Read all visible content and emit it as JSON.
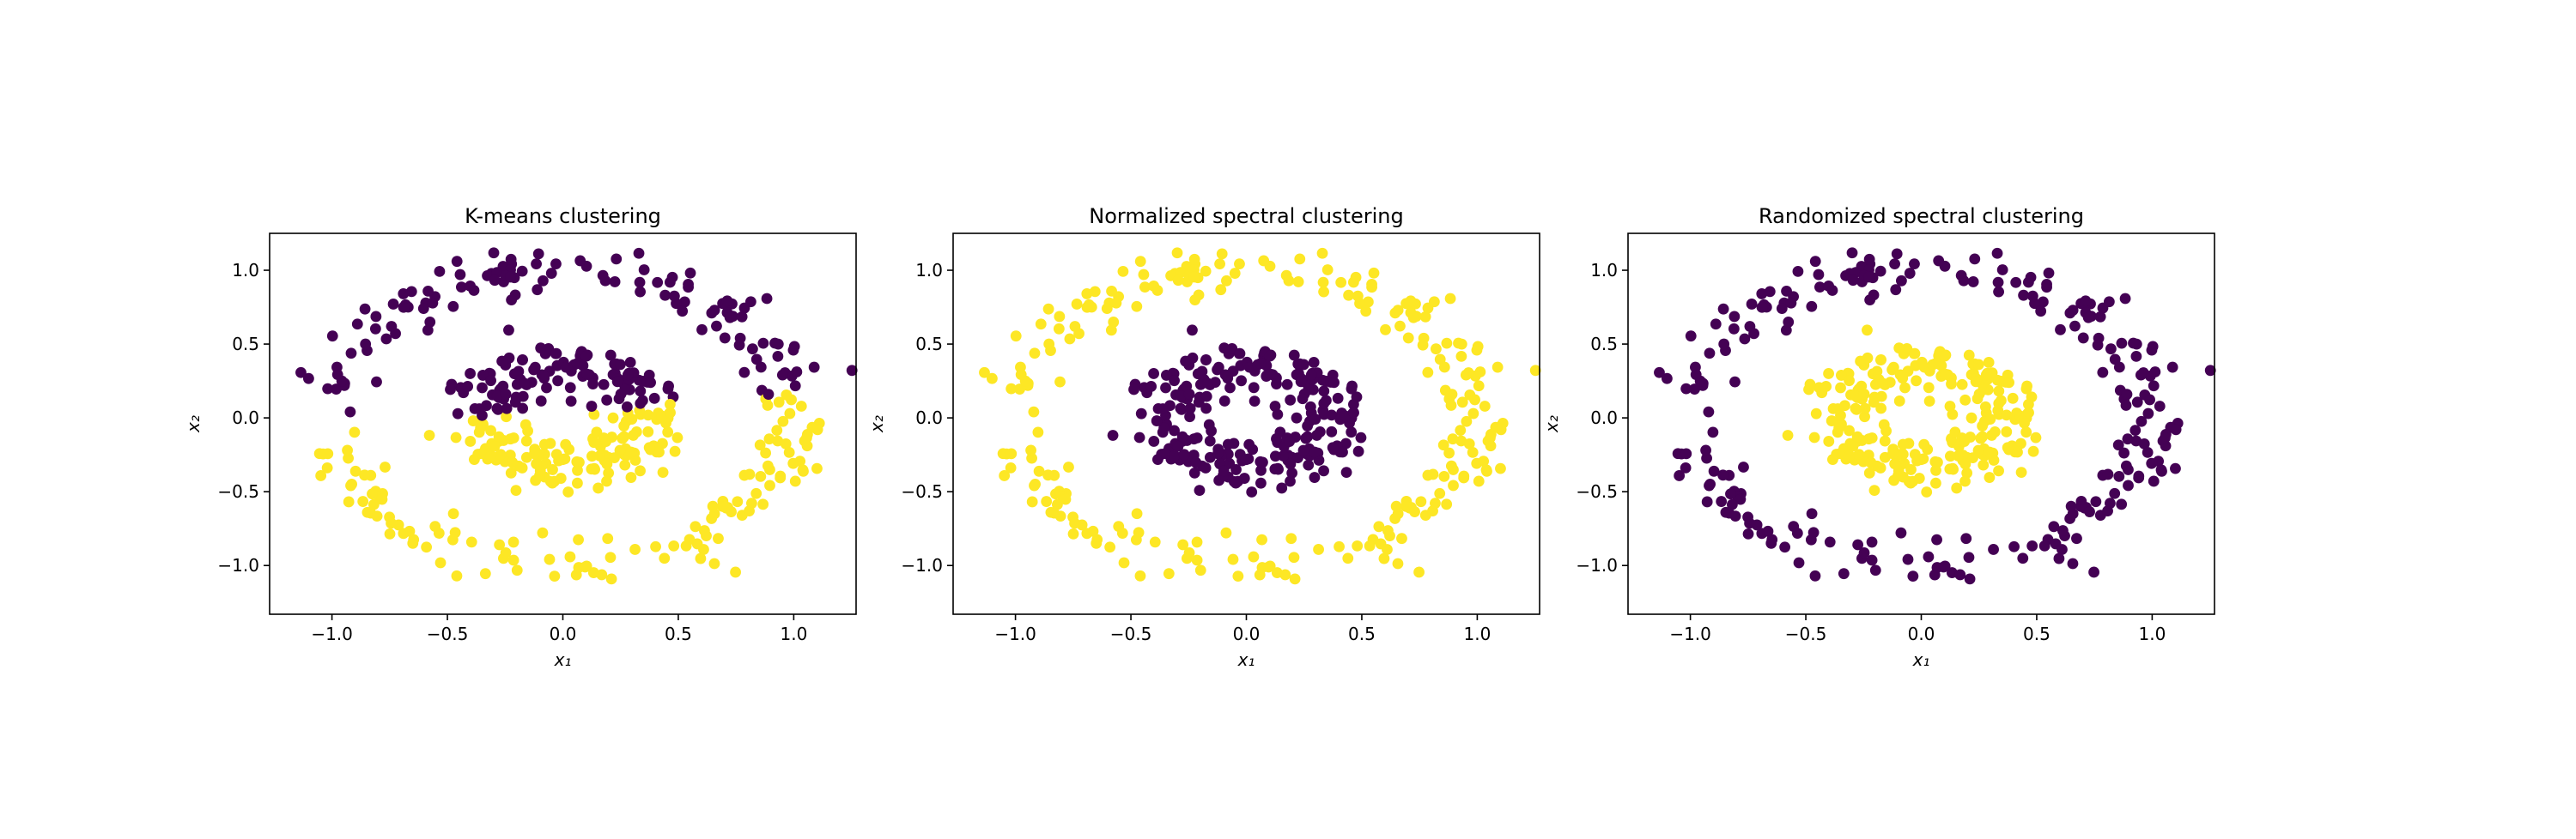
{
  "colors": {
    "cluster_0": "#440154",
    "cluster_1": "#fde725",
    "axes": "#000000",
    "background": "#ffffff"
  },
  "chart_data": [
    {
      "type": "scatter",
      "title": "K-means clustering",
      "xlabel": "x₁",
      "ylabel": "x₂",
      "xlim": [
        -1.27,
        1.27
      ],
      "ylim": [
        -1.33,
        1.25
      ],
      "xticks": [
        -1.0,
        -0.5,
        0.0,
        0.5,
        1.0
      ],
      "xtick_labels": [
        "−1.0",
        "−0.5",
        "0.0",
        "0.5",
        "1.0"
      ],
      "yticks": [
        -1.0,
        -0.5,
        0.0,
        0.5,
        1.0
      ],
      "yticklabels": [
        "−1.0",
        "−0.5",
        "0.0",
        "0.5",
        "1.0"
      ],
      "grid": false,
      "legend": "none",
      "labeling": "halfplane",
      "series": [
        {
          "label_id": 0,
          "description": "points above the split line (outer-ring upper half + inner-ring upper half)"
        },
        {
          "label_id": 1,
          "description": "points below the split line (outer-ring lower half + inner-ring lower half)"
        }
      ]
    },
    {
      "type": "scatter",
      "title": "Normalized spectral clustering",
      "xlabel": "x₁",
      "ylabel": "x₂",
      "xlim": [
        -1.27,
        1.27
      ],
      "ylim": [
        -1.33,
        1.25
      ],
      "xticks": [
        -1.0,
        -0.5,
        0.0,
        0.5,
        1.0
      ],
      "xtick_labels": [
        "−1.0",
        "−0.5",
        "0.0",
        "0.5",
        "1.0"
      ],
      "yticks": [
        -1.0,
        -0.5,
        0.0,
        0.5,
        1.0
      ],
      "yticklabels": [
        "−1.0",
        "−0.5",
        "0.0",
        "0.5",
        "1.0"
      ],
      "grid": false,
      "legend": "none",
      "labeling": "ring",
      "inner_label": 0,
      "outer_label": 1
    },
    {
      "type": "scatter",
      "title": "Randomized spectral clustering",
      "xlabel": "x₁",
      "ylabel": "x₂",
      "xlim": [
        -1.27,
        1.27
      ],
      "ylim": [
        -1.33,
        1.25
      ],
      "xticks": [
        -1.0,
        -0.5,
        0.0,
        0.5,
        1.0
      ],
      "xtick_labels": [
        "−1.0",
        "−0.5",
        "0.0",
        "0.5",
        "1.0"
      ],
      "yticks": [
        -1.0,
        -0.5,
        0.0,
        0.5,
        1.0
      ],
      "yticklabels": [
        "−1.0",
        "−0.5",
        "0.0",
        "0.5",
        "1.0"
      ],
      "grid": false,
      "legend": "none",
      "labeling": "ring",
      "inner_label": 1,
      "outer_label": 0
    }
  ],
  "rings": {
    "outer": {
      "radius": 1.0,
      "noise": 0.09,
      "count": 250
    },
    "inner": {
      "radius": 0.35,
      "noise": 0.09,
      "count": 250
    }
  }
}
